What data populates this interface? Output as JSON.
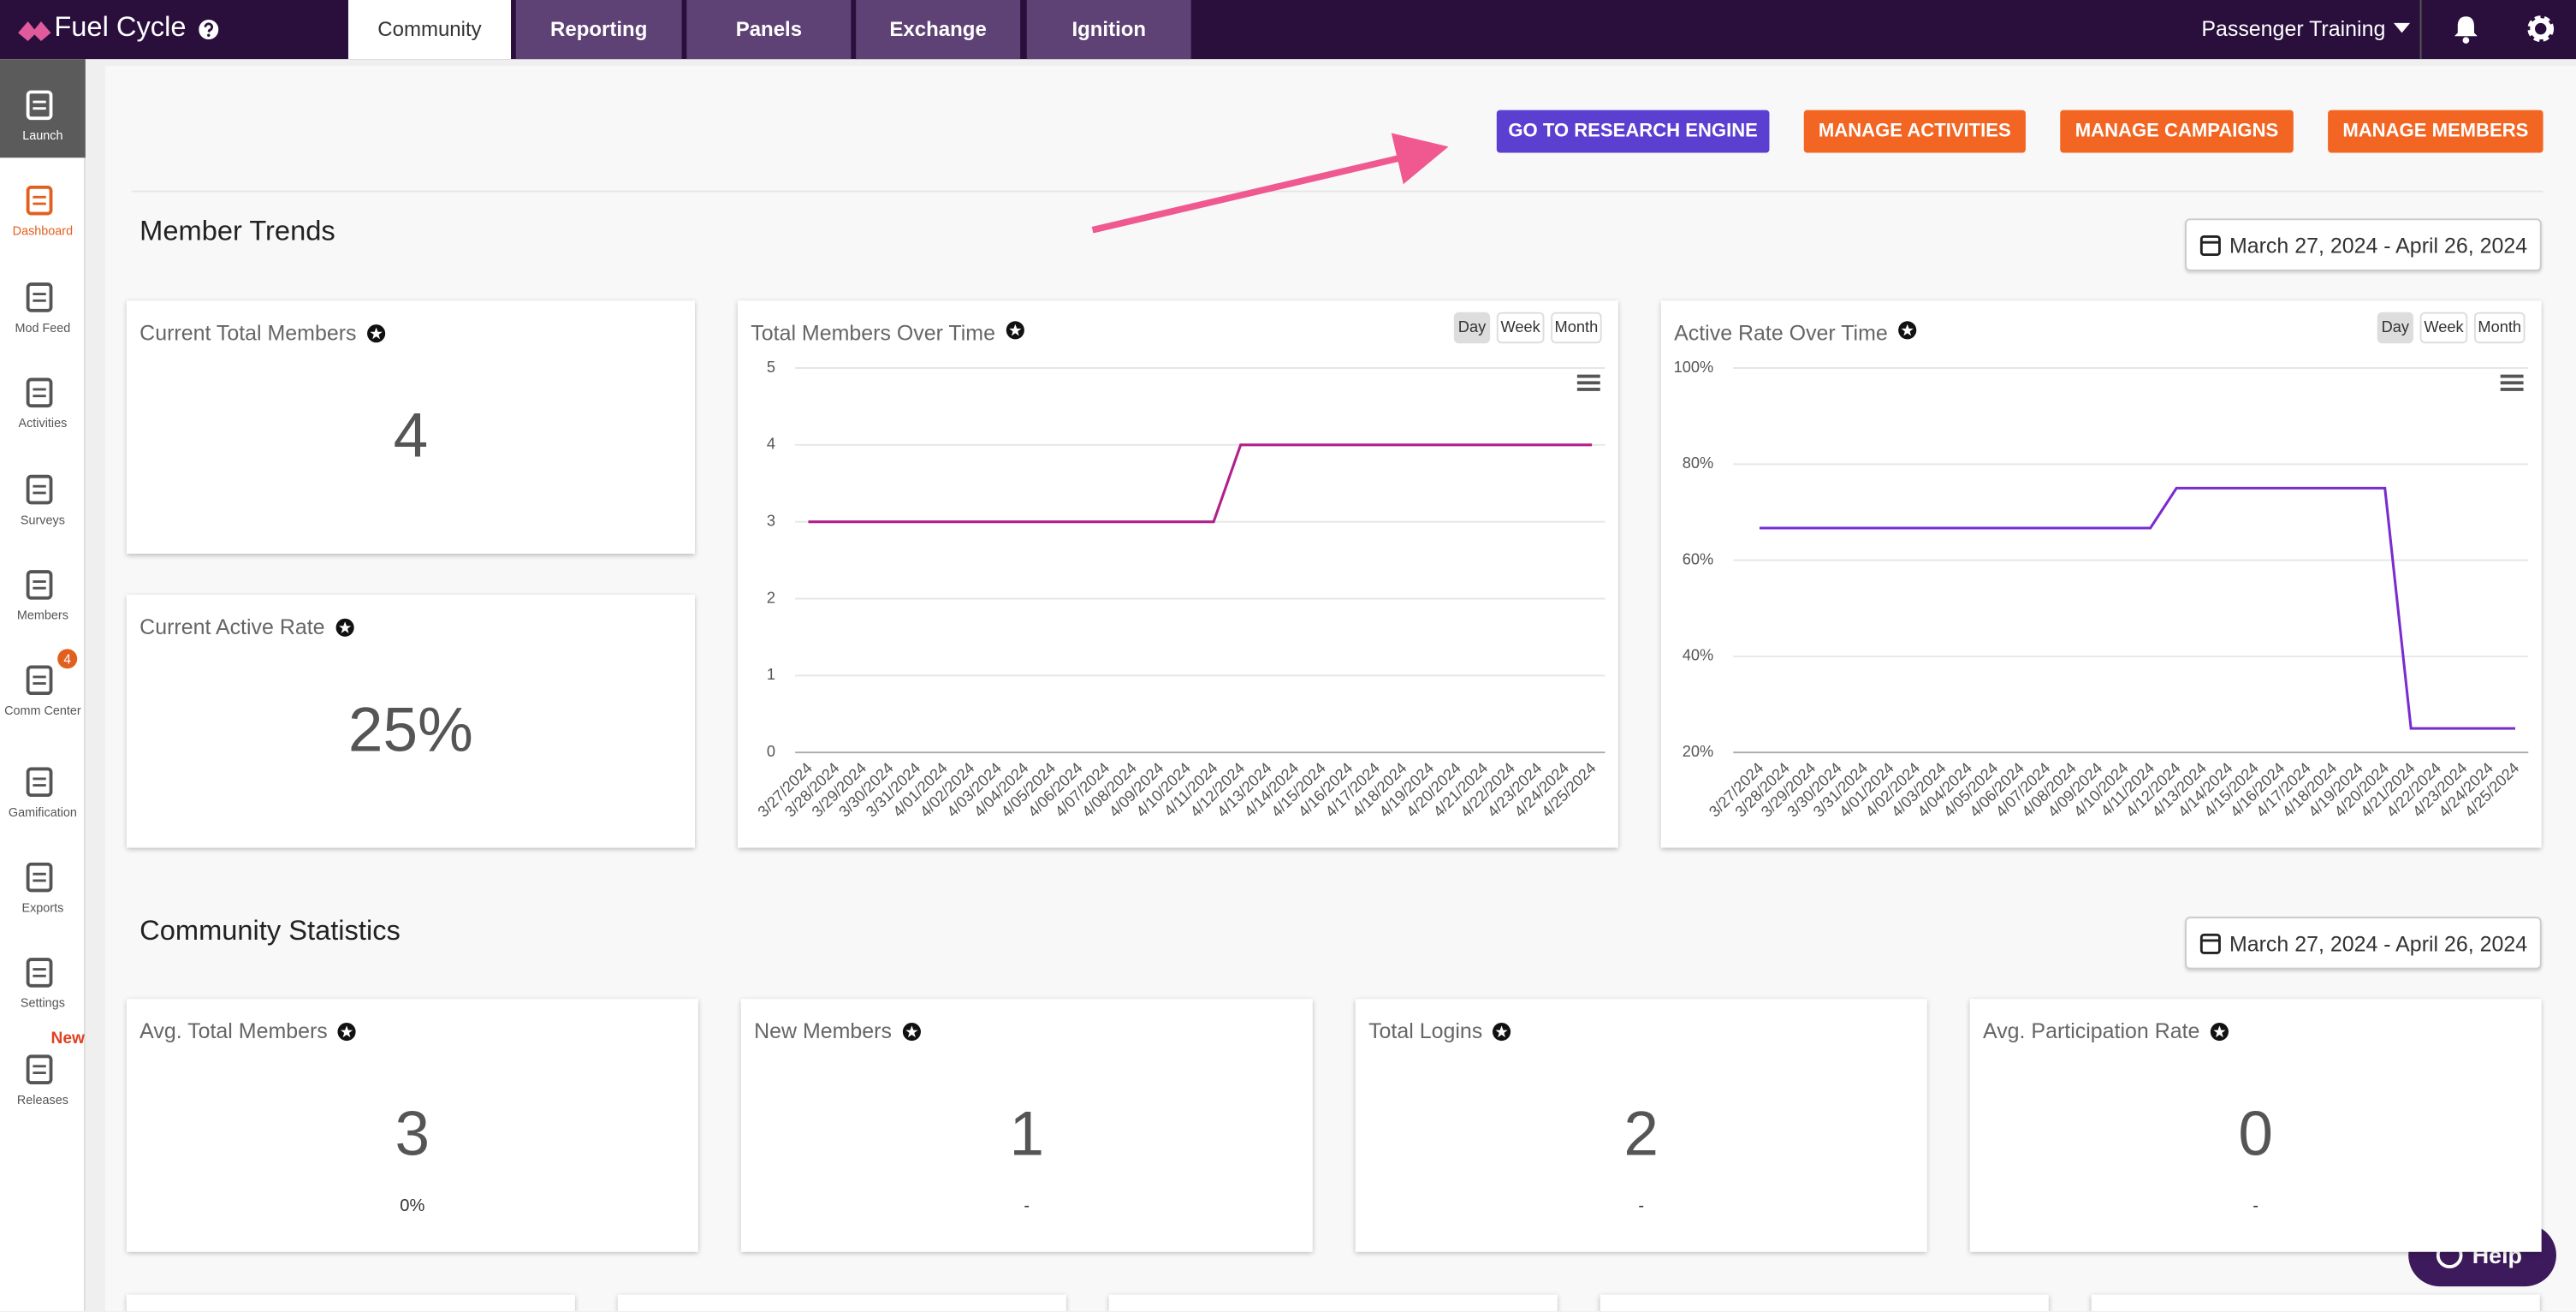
{
  "nav": {
    "brand": "Fuel Cycle",
    "tabs": [
      "Community",
      "Reporting",
      "Panels",
      "Exchange",
      "Ignition"
    ],
    "account": "Passenger Training"
  },
  "sidebar": [
    {
      "label": "Launch"
    },
    {
      "label": "Dashboard"
    },
    {
      "label": "Mod Feed"
    },
    {
      "label": "Activities"
    },
    {
      "label": "Surveys"
    },
    {
      "label": "Members"
    },
    {
      "label": "Comm Center",
      "badge": 4
    },
    {
      "label": "Gamification"
    },
    {
      "label": "Exports"
    },
    {
      "label": "Settings"
    },
    {
      "label": "Releases",
      "badge": "New"
    }
  ],
  "actions": [
    "GO TO RESEARCH ENGINE",
    "MANAGE ACTIVITIES",
    "MANAGE CAMPAIGNS",
    "MANAGE MEMBERS"
  ],
  "member_trends": {
    "title": "Member Trends",
    "date_range": "March 27, 2024 - April 26, 2024",
    "cards": [
      {
        "label": "Current Total Members",
        "value": 4
      },
      {
        "label": "Current Active Rate",
        "value": "25%"
      }
    ]
  },
  "charts": [
    {
      "type": "line",
      "title": "Total Members Over Time",
      "periods": [
        "Day",
        "Week",
        "Month"
      ],
      "color": "#b0208a",
      "categories": [
        "3/27/2024",
        "3/28/2024",
        "3/29/2024",
        "3/30/2024",
        "3/31/2024",
        "4/01/2024",
        "4/02/2024",
        "4/03/2024",
        "4/04/2024",
        "4/05/2024",
        "4/06/2024",
        "4/07/2024",
        "4/08/2024",
        "4/09/2024",
        "4/10/2024",
        "4/11/2024",
        "4/12/2024",
        "4/13/2024",
        "4/14/2024",
        "4/15/2024",
        "4/16/2024",
        "4/17/2024",
        "4/18/2024",
        "4/19/2024",
        "4/20/2024",
        "4/21/2024",
        "4/22/2024",
        "4/23/2024",
        "4/24/2024",
        "4/25/2024"
      ],
      "values": [
        3,
        3,
        3,
        3,
        3,
        3,
        3,
        3,
        3,
        3,
        3,
        3,
        3,
        3,
        3,
        3,
        4,
        4,
        4,
        4,
        4,
        4,
        4,
        4,
        4,
        4,
        4,
        4,
        4,
        4
      ],
      "ylim": [
        0,
        5
      ],
      "yticks": [
        0,
        1,
        2,
        3,
        4,
        5
      ],
      "grid": true
    },
    {
      "type": "line",
      "title": "Active Rate Over Time",
      "periods": [
        "Day",
        "Week",
        "Month"
      ],
      "color": "#7a2ccf",
      "categories": [
        "3/27/2024",
        "3/28/2024",
        "3/29/2024",
        "3/30/2024",
        "3/31/2024",
        "4/01/2024",
        "4/02/2024",
        "4/03/2024",
        "4/04/2024",
        "4/05/2024",
        "4/06/2024",
        "4/07/2024",
        "4/08/2024",
        "4/09/2024",
        "4/10/2024",
        "4/11/2024",
        "4/12/2024",
        "4/13/2024",
        "4/14/2024",
        "4/15/2024",
        "4/16/2024",
        "4/17/2024",
        "4/18/2024",
        "4/19/2024",
        "4/20/2024",
        "4/21/2024",
        "4/22/2024",
        "4/23/2024",
        "4/24/2024",
        "4/25/2024"
      ],
      "values": [
        66.7,
        66.7,
        66.7,
        66.7,
        66.7,
        66.7,
        66.7,
        66.7,
        66.7,
        66.7,
        66.7,
        66.7,
        66.7,
        66.7,
        66.7,
        66.7,
        75,
        75,
        75,
        75,
        75,
        75,
        75,
        75,
        75,
        25,
        25,
        25,
        25,
        25
      ],
      "ylim": [
        20,
        100
      ],
      "yticks": [
        {
          "value": 20,
          "label": "20%"
        },
        {
          "value": 40,
          "label": "40%"
        },
        {
          "value": 60,
          "label": "60%"
        },
        {
          "value": 80,
          "label": "80%"
        },
        {
          "value": 100,
          "label": "100%"
        }
      ],
      "grid": true
    }
  ],
  "community_statistics": {
    "title": "Community Statistics",
    "date_range": "March 27, 2024 - April 26, 2024",
    "cards": [
      {
        "label": "Avg. Total Members",
        "value": 3,
        "sub": "0%"
      },
      {
        "label": "New Members",
        "value": 1,
        "sub": "-"
      },
      {
        "label": "Total Logins",
        "value": 2,
        "sub": "-"
      },
      {
        "label": "Avg. Participation Rate",
        "value": 0,
        "sub": "-"
      }
    ]
  },
  "help": "Help"
}
